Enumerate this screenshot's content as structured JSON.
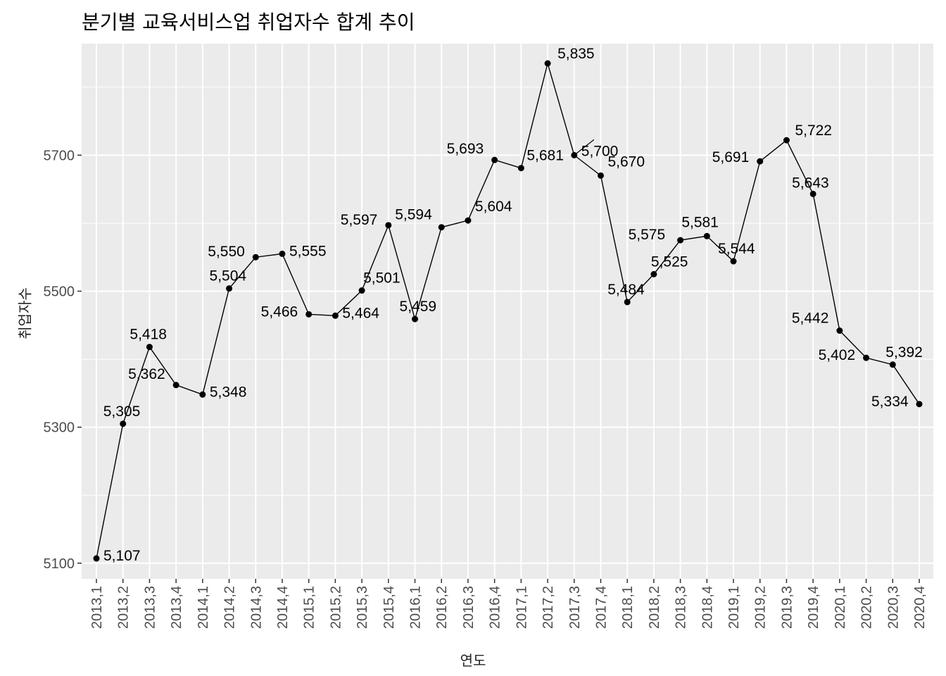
{
  "chart_data": {
    "type": "line",
    "title": "분기별 교육서비스업 취업자수 합계 추이",
    "xlabel": "연도",
    "ylabel": "취업자수",
    "categories": [
      "2013,1",
      "2013,2",
      "2013,3",
      "2013,4",
      "2014,1",
      "2014,2",
      "2014,3",
      "2014,4",
      "2015,1",
      "2015,2",
      "2015,3",
      "2015,4",
      "2016,1",
      "2016,2",
      "2016,3",
      "2016,4",
      "2017,1",
      "2017,2",
      "2017,3",
      "2017,4",
      "2018,1",
      "2018,2",
      "2018,3",
      "2018,4",
      "2019,1",
      "2019,2",
      "2019,3",
      "2019,4",
      "2020,1",
      "2020,2",
      "2020,3",
      "2020,4"
    ],
    "values": [
      5107,
      5305,
      5418,
      5362,
      5348,
      5504,
      5550,
      5555,
      5466,
      5464,
      5501,
      5597,
      5459,
      5594,
      5604,
      5693,
      5681,
      5835,
      5700,
      5670,
      5484,
      5525,
      5575,
      5581,
      5544,
      5691,
      5722,
      5643,
      5442,
      5402,
      5392,
      5334
    ],
    "value_labels": [
      "5,107",
      "5,305",
      "5,418",
      "5,362",
      "5,348",
      "5,504",
      "5,550",
      "5,555",
      "5,466",
      "5,464",
      "5,501",
      "5,597",
      "5,459",
      "5,594",
      "5,604",
      "5,693",
      "5,681",
      "5,835",
      "5,700",
      "5,670",
      "5,484",
      "5,525",
      "5,575",
      "5,581",
      "5,544",
      "5,691",
      "5,722",
      "5,643",
      "5,442",
      "5,402",
      "5,392",
      "5,334"
    ],
    "yticks": [
      5100,
      5300,
      5500,
      5700
    ],
    "ylim": [
      5077,
      5864
    ],
    "grid": true,
    "legend": "none",
    "colors": {
      "panel": "#ebebeb",
      "grid": "#ffffff",
      "line": "#000000",
      "point": "#000000"
    }
  }
}
